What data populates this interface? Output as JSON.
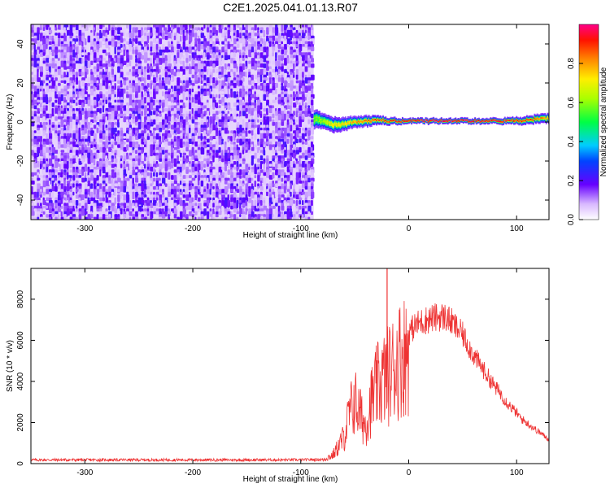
{
  "title": "C2E1.2025.041.01.13.R07",
  "chart_data": [
    {
      "type": "heatmap",
      "xlabel": "Height of straight line (km)",
      "ylabel": "Frequency (Hz)",
      "xlim": [
        -350,
        130
      ],
      "ylim": [
        -50,
        50
      ],
      "xticks": [
        -300,
        -200,
        -100,
        0,
        100
      ],
      "yticks": [
        -40,
        -20,
        0,
        20,
        40
      ],
      "noise_region_x": [
        -350,
        -88
      ],
      "signal_band": {
        "x": [
          -88,
          -80,
          -70,
          -60,
          -50,
          -40,
          -30,
          -20,
          -10,
          0,
          20,
          40,
          60,
          80,
          100,
          120,
          130
        ],
        "center_hz": [
          1.5,
          0.5,
          -1.5,
          -1,
          0,
          0.5,
          1,
          0.5,
          0.5,
          0.5,
          0.5,
          0.5,
          0.5,
          0.5,
          0.5,
          1.5,
          2
        ],
        "half_width_hz": [
          5,
          4,
          4,
          3.5,
          3,
          3,
          2.5,
          2,
          1.8,
          1.5,
          1.5,
          1.5,
          1.5,
          1.6,
          2,
          2.5,
          2.5
        ],
        "peak_amplitude": [
          0.55,
          0.6,
          0.7,
          0.75,
          0.8,
          0.85,
          0.88,
          0.9,
          0.92,
          0.95,
          0.97,
          0.98,
          0.97,
          0.95,
          0.9,
          0.85,
          0.8
        ]
      },
      "colorbar": {
        "label": "Normalized spectral amplitude",
        "range": [
          0,
          1
        ],
        "ticks": [
          0.0,
          0.2,
          0.4,
          0.6,
          0.8
        ]
      }
    },
    {
      "type": "line",
      "xlabel": "Height of straight line (km)",
      "ylabel": "SNR (10 * v/v)",
      "xlim": [
        -350,
        130
      ],
      "ylim": [
        0,
        9500
      ],
      "xticks": [
        -300,
        -200,
        -100,
        0,
        100
      ],
      "yticks": [
        0,
        2000,
        4000,
        6000,
        8000
      ],
      "series": [
        {
          "color": "#ee3333",
          "x": [
            -350,
            -300,
            -250,
            -200,
            -150,
            -100,
            -80,
            -70,
            -60,
            -55,
            -50,
            -45,
            -40,
            -35,
            -30,
            -25,
            -20,
            -15,
            -10,
            -5,
            0,
            5,
            10,
            15,
            20,
            25,
            30,
            35,
            40,
            45,
            50,
            55,
            60,
            65,
            70,
            75,
            80,
            85,
            90,
            95,
            100,
            105,
            110,
            115,
            120,
            125,
            130
          ],
          "y": [
            180,
            180,
            180,
            180,
            180,
            180,
            200,
            500,
            1500,
            2800,
            3600,
            2800,
            2200,
            3500,
            4300,
            4700,
            5000,
            5400,
            5900,
            6200,
            6500,
            6800,
            7000,
            7100,
            7200,
            7250,
            7300,
            7250,
            7000,
            6700,
            6400,
            5900,
            5400,
            5000,
            4600,
            4200,
            3800,
            3500,
            3100,
            2800,
            2500,
            2200,
            2000,
            1800,
            1600,
            1400,
            1200
          ],
          "spike": {
            "x": -20,
            "y": 9500
          }
        }
      ]
    }
  ]
}
